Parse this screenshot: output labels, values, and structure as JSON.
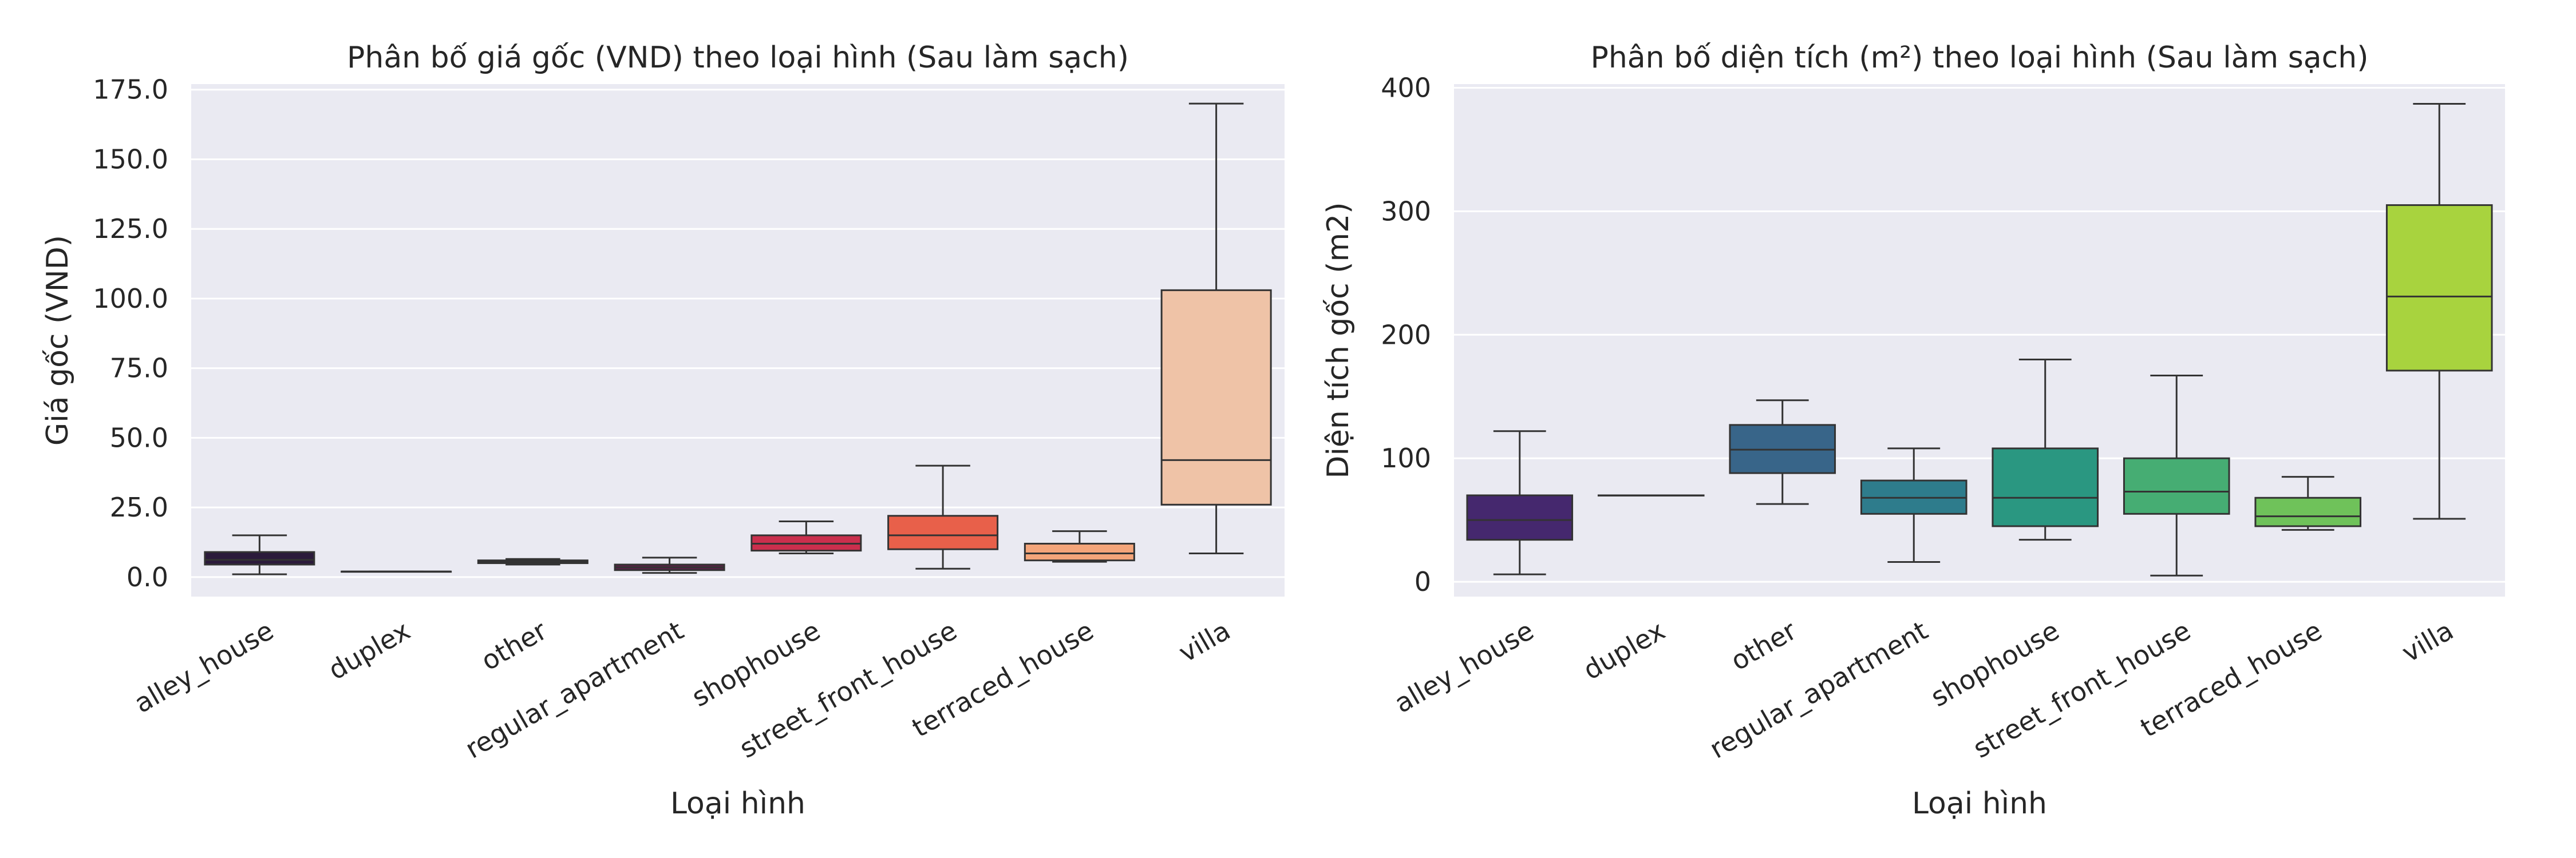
{
  "chart_data": [
    {
      "type": "box",
      "title": "Phân bố giá gốc (VND) theo loại hình (Sau làm sạch)",
      "xlabel": "Loại hình",
      "ylabel": "Giá gốc (VND)",
      "ylim": [
        -7,
        177
      ],
      "yticks": [
        0,
        25,
        50,
        75,
        100,
        125,
        150,
        175
      ],
      "yticklabels": [
        "0.0",
        "25.0",
        "50.0",
        "75.0",
        "100.0",
        "125.0",
        "150.0",
        "175.0"
      ],
      "grid": true,
      "categories": [
        "alley_house",
        "duplex",
        "other",
        "regular_apartment",
        "shophouse",
        "street_front_house",
        "terraced_house",
        "villa"
      ],
      "colors": [
        "#2b1a3b",
        "#3d2a52",
        "#4a1f4d",
        "#5c1f47",
        "#cb2f4d",
        "#e8604a",
        "#f4a57a",
        "#efc3a7"
      ],
      "boxes": [
        {
          "whislo": 1,
          "q1": 4.5,
          "med": 6.2,
          "q3": 9,
          "whishi": 15
        },
        {
          "whislo": 2,
          "q1": 2,
          "med": 2,
          "q3": 2,
          "whishi": 2
        },
        {
          "whislo": 4.5,
          "q1": 5,
          "med": 5.5,
          "q3": 6,
          "whishi": 6.5
        },
        {
          "whislo": 1.5,
          "q1": 2.5,
          "med": 3.5,
          "q3": 4.5,
          "whishi": 7
        },
        {
          "whislo": 8.5,
          "q1": 9.5,
          "med": 12,
          "q3": 15,
          "whishi": 20
        },
        {
          "whislo": 3,
          "q1": 10,
          "med": 15,
          "q3": 22,
          "whishi": 40
        },
        {
          "whislo": 5.5,
          "q1": 6,
          "med": 8.5,
          "q3": 12,
          "whishi": 16.5
        },
        {
          "whislo": 8.5,
          "q1": 26,
          "med": 42,
          "q3": 103,
          "whishi": 170
        }
      ]
    },
    {
      "type": "box",
      "title": "Phân bố diện tích (m²) theo loại hình (Sau làm sạch)",
      "xlabel": "Loại hình",
      "ylabel": "Diện tích gốc (m2)",
      "ylim": [
        -12,
        403
      ],
      "yticks": [
        0,
        100,
        200,
        300,
        400
      ],
      "yticklabels": [
        "0",
        "100",
        "200",
        "300",
        "400"
      ],
      "grid": true,
      "categories": [
        "alley_house",
        "duplex",
        "other",
        "regular_apartment",
        "shophouse",
        "street_front_house",
        "terraced_house",
        "villa"
      ],
      "colors": [
        "#45286e",
        "#433c7c",
        "#386589",
        "#2e7c8c",
        "#2a9781",
        "#46ad73",
        "#6fc25a",
        "#a8d33e"
      ],
      "boxes": [
        {
          "whislo": 6,
          "q1": 34,
          "med": 50,
          "q3": 70,
          "whishi": 122
        },
        {
          "whislo": 70,
          "q1": 70,
          "med": 70,
          "q3": 70,
          "whishi": 70
        },
        {
          "whislo": 63,
          "q1": 88,
          "med": 107,
          "q3": 127,
          "whishi": 147
        },
        {
          "whislo": 16,
          "q1": 55,
          "med": 68,
          "q3": 82,
          "whishi": 108
        },
        {
          "whislo": 34,
          "q1": 45,
          "med": 68,
          "q3": 108,
          "whishi": 180
        },
        {
          "whislo": 5,
          "q1": 55,
          "med": 73,
          "q3": 100,
          "whishi": 167
        },
        {
          "whislo": 42,
          "q1": 45,
          "med": 53,
          "q3": 68,
          "whishi": 85
        },
        {
          "whislo": 51,
          "q1": 171,
          "med": 231,
          "q3": 305,
          "whishi": 387
        }
      ]
    }
  ]
}
